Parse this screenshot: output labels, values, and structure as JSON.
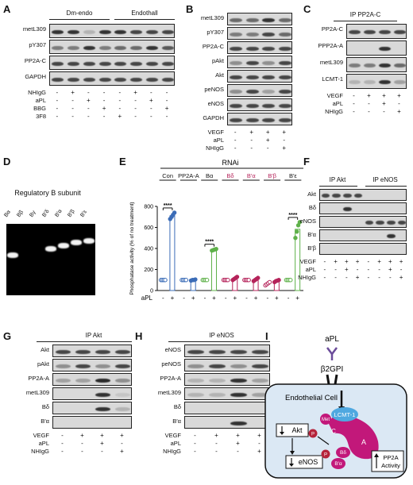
{
  "panels": {
    "A": {
      "label": "A",
      "groups": [
        "Dm-endo",
        "Endothall"
      ],
      "rows": [
        "metL309",
        "pY307",
        "PP2A-C",
        "GAPDH"
      ],
      "treat": [
        {
          "name": "NHIgG",
          "v": [
            "-",
            "+",
            "-",
            "-",
            "-",
            "+",
            "-",
            "-"
          ]
        },
        {
          "name": "aPL",
          "v": [
            "-",
            "-",
            "+",
            "-",
            "-",
            "-",
            "+",
            "-"
          ]
        },
        {
          "name": "BBG",
          "v": [
            "-",
            "-",
            "-",
            "+",
            "-",
            "-",
            "-",
            "+"
          ]
        },
        {
          "name": "3F8",
          "v": [
            "-",
            "-",
            "-",
            "-",
            "+",
            "-",
            "-",
            "-"
          ]
        }
      ]
    },
    "B": {
      "label": "B",
      "rows": [
        "metL309",
        "pY307",
        "PP2A-C",
        "pAkt",
        "Akt",
        "peNOS",
        "eNOS",
        "GAPDH"
      ],
      "treat": [
        {
          "name": "VEGF",
          "v": [
            "-",
            "+",
            "+",
            "+"
          ]
        },
        {
          "name": "aPL",
          "v": [
            "-",
            "-",
            "+",
            "-"
          ]
        },
        {
          "name": "NHIgG",
          "v": [
            "-",
            "-",
            "-",
            "+"
          ]
        }
      ]
    },
    "C": {
      "label": "C",
      "header": "IP PP2A-C",
      "rows": [
        "PP2A-C",
        "PPP2A-A",
        "metL309",
        "LCMT-1"
      ],
      "treat": [
        {
          "name": "VEGF",
          "v": [
            "-",
            "+",
            "+",
            "+"
          ]
        },
        {
          "name": "aPL",
          "v": [
            "-",
            "-",
            "+",
            "-"
          ]
        },
        {
          "name": "NHIgG",
          "v": [
            "-",
            "-",
            "-",
            "+"
          ]
        }
      ]
    },
    "D": {
      "label": "D",
      "title": "Regulatory B subunit",
      "lanes": [
        "Bα",
        "Bβ",
        "Bγ",
        "B′δ",
        "B′α",
        "B′β",
        "B′ε"
      ]
    },
    "E": {
      "label": "E",
      "header": "RNAi",
      "ylabel": "Phosphatase activity (% of no treatment)",
      "xlabel_treat": "aPL",
      "sig": "****",
      "pm": [
        "-",
        "+",
        "-",
        "+",
        "-",
        "+",
        "-",
        "+",
        "-",
        "+",
        "-",
        "+",
        "-",
        "+"
      ]
    },
    "F": {
      "label": "F",
      "headers": [
        "IP Akt",
        "IP eNOS"
      ],
      "rows": [
        "Akt",
        "Bδ",
        "eNOS",
        "B′α",
        "B′β"
      ],
      "treat": [
        {
          "name": "VEGF",
          "v": [
            "-",
            "+",
            "+",
            "+",
            "-",
            "+",
            "+",
            "+"
          ]
        },
        {
          "name": "aPL",
          "v": [
            "-",
            "-",
            "+",
            "-",
            "-",
            "-",
            "+",
            "-"
          ]
        },
        {
          "name": "NHIgG",
          "v": [
            "-",
            "-",
            "-",
            "+",
            "-",
            "-",
            "-",
            "+"
          ]
        }
      ]
    },
    "G": {
      "label": "G",
      "header": "IP Akt",
      "rows": [
        "Akt",
        "pAkt",
        "PP2A-A",
        "metL309",
        "Bδ",
        "B′α"
      ],
      "treat": [
        {
          "name": "VEGF",
          "v": [
            "-",
            "+",
            "+",
            "+"
          ]
        },
        {
          "name": "aPL",
          "v": [
            "-",
            "-",
            "+",
            "-"
          ]
        },
        {
          "name": "NHIgG",
          "v": [
            "-",
            "-",
            "-",
            "+"
          ]
        }
      ]
    },
    "H": {
      "label": "H",
      "header": "IP eNOS",
      "rows": [
        "eNOS",
        "peNOS",
        "PP2A-A",
        "metL309",
        "Bδ",
        "B′α"
      ],
      "treat": [
        {
          "name": "VEGF",
          "v": [
            "-",
            "+",
            "+",
            "+"
          ]
        },
        {
          "name": "aPL",
          "v": [
            "-",
            "-",
            "+",
            "-"
          ]
        },
        {
          "name": "NHIgG",
          "v": [
            "-",
            "-",
            "-",
            "+"
          ]
        }
      ]
    },
    "I": {
      "label": "I",
      "apl": "aPL",
      "b2gpi": "β2GPI",
      "cell": "Endothelial Cell",
      "lcmt": "LCMT-1",
      "met": "Met",
      "c": "C",
      "a": "A",
      "bdelta": "Bδ",
      "balpha": "B′α",
      "p": "P",
      "akt": "Akt",
      "enos": "eNOS",
      "pp2a": "PP2A Activity"
    }
  },
  "chart_data": {
    "type": "scatter",
    "title": "",
    "header": "RNAi",
    "groups": [
      "Con",
      "PP2A-A",
      "Bα",
      "Bδ",
      "B′α",
      "B′β",
      "B′ε"
    ],
    "xlabel": "aPL",
    "ylabel": "Phosphatase activity (% of no treatment)",
    "ylim": [
      0,
      800
    ],
    "yticks": [
      0,
      200,
      400,
      600,
      800
    ],
    "group_colors": [
      "#3b6cb7",
      "#3b6cb7",
      "#5fb14a",
      "#b5235a",
      "#b5235a",
      "#b5235a",
      "#5fb14a"
    ],
    "series": [
      {
        "name": "Con -",
        "values": [
          100,
          100,
          100,
          100
        ]
      },
      {
        "name": "Con +",
        "values": [
          680,
          700,
          720,
          740
        ]
      },
      {
        "name": "PP2A-A -",
        "values": [
          100,
          100,
          100,
          100
        ]
      },
      {
        "name": "PP2A-A +",
        "values": [
          95,
          100,
          100,
          105
        ]
      },
      {
        "name": "Bα -",
        "values": [
          100,
          100,
          100,
          100
        ]
      },
      {
        "name": "Bα +",
        "values": [
          380,
          385,
          390,
          395
        ]
      },
      {
        "name": "Bδ -",
        "values": [
          100,
          100,
          100,
          100
        ]
      },
      {
        "name": "Bδ +",
        "values": [
          100,
          110,
          120,
          130
        ]
      },
      {
        "name": "B′α -",
        "values": [
          100,
          100,
          100,
          100
        ]
      },
      {
        "name": "B′α +",
        "values": [
          90,
          100,
          110,
          120
        ]
      },
      {
        "name": "B′β -",
        "values": [
          50,
          60,
          70,
          80
        ]
      },
      {
        "name": "B′β +",
        "values": [
          80,
          90,
          95,
          100
        ]
      },
      {
        "name": "B′ε -",
        "values": [
          100,
          100,
          100,
          100
        ]
      },
      {
        "name": "B′ε +",
        "values": [
          500,
          560,
          620,
          650
        ]
      }
    ],
    "significance": [
      {
        "group": "Con",
        "text": "****"
      },
      {
        "group": "Bα",
        "text": "****"
      },
      {
        "group": "B′ε",
        "text": "****"
      }
    ]
  }
}
